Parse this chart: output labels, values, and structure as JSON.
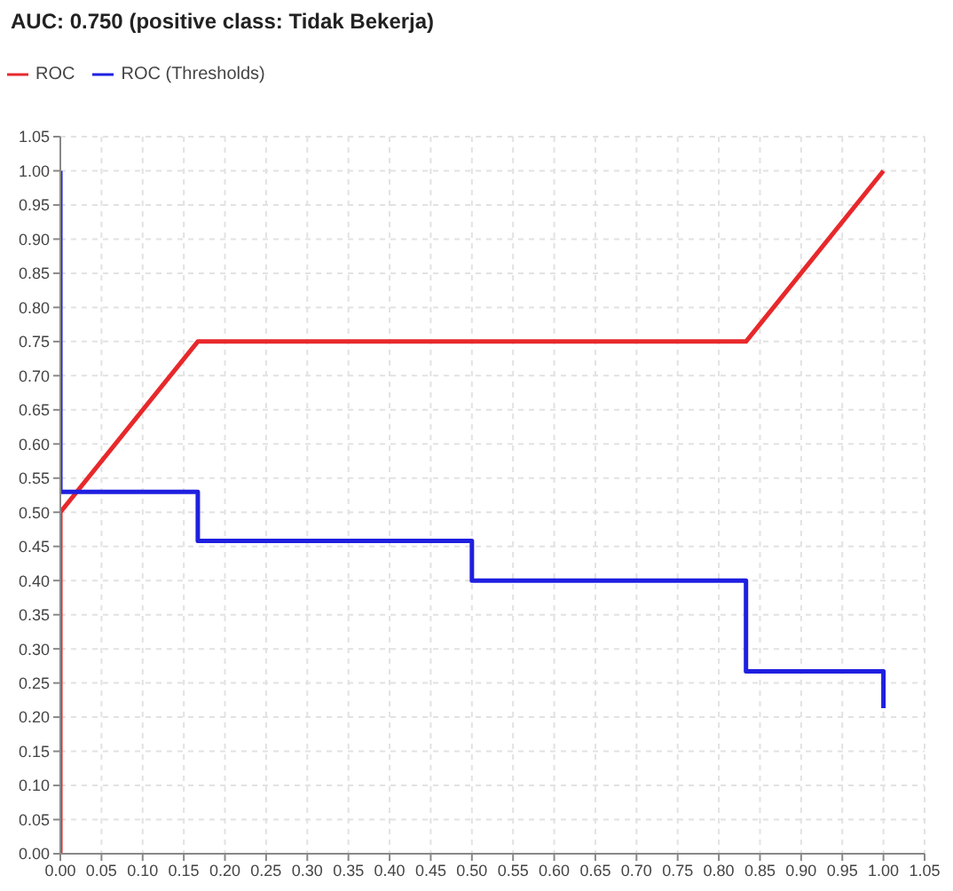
{
  "chart_data": {
    "type": "line",
    "title": "AUC: 0.750 (positive class: Tidak Bekerja)",
    "series": [
      {
        "name": "ROC",
        "color": "#e8282b",
        "x": [
          0,
          0,
          0.167,
          0.833,
          1
        ],
        "values": [
          0,
          0.5,
          0.75,
          0.75,
          1
        ]
      },
      {
        "name": "ROC (Thresholds)",
        "color": "#1f1fe0",
        "x": [
          0,
          0,
          0.167,
          0.167,
          0.5,
          0.5,
          0.833,
          0.833,
          1,
          1
        ],
        "values": [
          1,
          0.53,
          0.53,
          0.458,
          0.458,
          0.4,
          0.4,
          0.267,
          0.267,
          0.213
        ]
      }
    ],
    "xlim": [
      0,
      1.05
    ],
    "ylim": [
      0,
      1.05
    ],
    "xticks": [
      {
        "value": 0,
        "label": "0.00"
      },
      {
        "value": 0.05,
        "label": "0.05"
      },
      {
        "value": 0.1,
        "label": "0.10"
      },
      {
        "value": 0.15,
        "label": "0.15"
      },
      {
        "value": 0.2,
        "label": "0.20"
      },
      {
        "value": 0.25,
        "label": "0.25"
      },
      {
        "value": 0.3,
        "label": "0.30"
      },
      {
        "value": 0.35,
        "label": "0.35"
      },
      {
        "value": 0.4,
        "label": "0.40"
      },
      {
        "value": 0.45,
        "label": "0.45"
      },
      {
        "value": 0.5,
        "label": "0.50"
      },
      {
        "value": 0.55,
        "label": "0.55"
      },
      {
        "value": 0.6,
        "label": "0.60"
      },
      {
        "value": 0.65,
        "label": "0.65"
      },
      {
        "value": 0.7,
        "label": "0.70"
      },
      {
        "value": 0.75,
        "label": "0.75"
      },
      {
        "value": 0.8,
        "label": "0.80"
      },
      {
        "value": 0.85,
        "label": "0.85"
      },
      {
        "value": 0.9,
        "label": "0.90"
      },
      {
        "value": 0.95,
        "label": "0.95"
      },
      {
        "value": 1,
        "label": "1.00"
      },
      {
        "value": 1.05,
        "label": "1.05"
      }
    ],
    "yticks": [
      {
        "value": 0,
        "label": "0.00"
      },
      {
        "value": 0.05,
        "label": "0.05"
      },
      {
        "value": 0.1,
        "label": "0.10"
      },
      {
        "value": 0.15,
        "label": "0.15"
      },
      {
        "value": 0.2,
        "label": "0.20"
      },
      {
        "value": 0.25,
        "label": "0.25"
      },
      {
        "value": 0.3,
        "label": "0.30"
      },
      {
        "value": 0.35,
        "label": "0.35"
      },
      {
        "value": 0.4,
        "label": "0.40"
      },
      {
        "value": 0.45,
        "label": "0.45"
      },
      {
        "value": 0.5,
        "label": "0.50"
      },
      {
        "value": 0.55,
        "label": "0.55"
      },
      {
        "value": 0.6,
        "label": "0.60"
      },
      {
        "value": 0.65,
        "label": "0.65"
      },
      {
        "value": 0.7,
        "label": "0.70"
      },
      {
        "value": 0.75,
        "label": "0.75"
      },
      {
        "value": 0.8,
        "label": "0.80"
      },
      {
        "value": 0.85,
        "label": "0.85"
      },
      {
        "value": 0.9,
        "label": "0.90"
      },
      {
        "value": 0.95,
        "label": "0.95"
      },
      {
        "value": 1,
        "label": "1.00"
      },
      {
        "value": 1.05,
        "label": "1.05"
      }
    ],
    "grid": true,
    "legend": "top left",
    "marker": "none",
    "line_style": "solid"
  }
}
